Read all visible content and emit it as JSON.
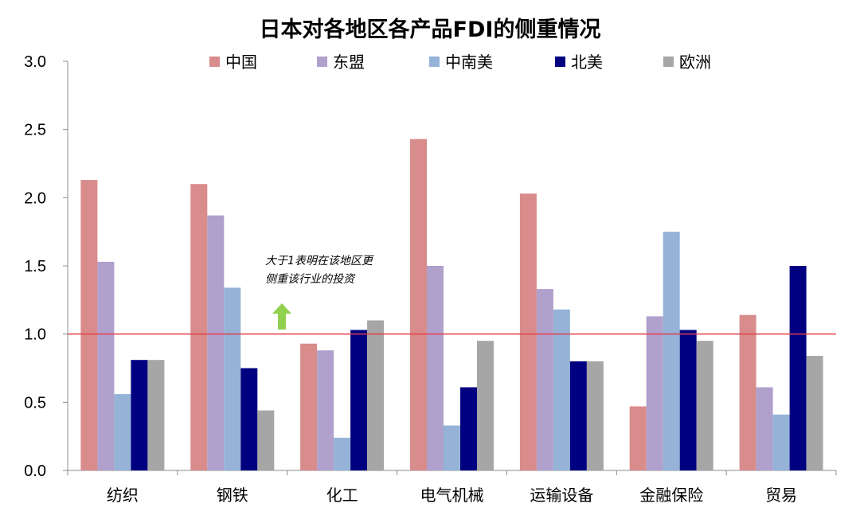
{
  "chart_data": {
    "type": "bar",
    "title": "日本对各地区各产品FDI的侧重情况",
    "xlabel": "",
    "ylabel": "",
    "ylim": [
      0,
      3.0
    ],
    "yticks": [
      "0.0",
      "0.5",
      "1.0",
      "1.5",
      "2.0",
      "2.5",
      "3.0"
    ],
    "categories": [
      "纺织",
      "钢铁",
      "化工",
      "电气机械",
      "运输设备",
      "金融保险",
      "贸易"
    ],
    "series": [
      {
        "name": "中国",
        "color": "#D98C8C",
        "values": [
          2.13,
          2.1,
          0.93,
          2.43,
          2.03,
          0.47,
          1.14
        ]
      },
      {
        "name": "东盟",
        "color": "#B0A0CC",
        "values": [
          1.53,
          1.87,
          0.88,
          1.5,
          1.33,
          1.13,
          0.61
        ]
      },
      {
        "name": "中南美",
        "color": "#95B3D7",
        "values": [
          0.56,
          1.34,
          0.24,
          0.33,
          1.18,
          1.75,
          0.41
        ]
      },
      {
        "name": "北美",
        "color": "#000080",
        "values": [
          0.81,
          0.75,
          1.03,
          0.61,
          0.8,
          1.03,
          1.5
        ]
      },
      {
        "name": "欧洲",
        "color": "#A6A6A6",
        "values": [
          0.81,
          0.44,
          1.1,
          0.95,
          0.8,
          0.95,
          0.84
        ]
      }
    ],
    "reference_line": {
      "value": 1.0,
      "color": "#E0404A"
    },
    "annotation": {
      "lines": [
        "大于1表明在该地区更",
        "侧重该行业的投资"
      ],
      "arrow_color": "#92D050"
    },
    "legend_position": "top"
  }
}
